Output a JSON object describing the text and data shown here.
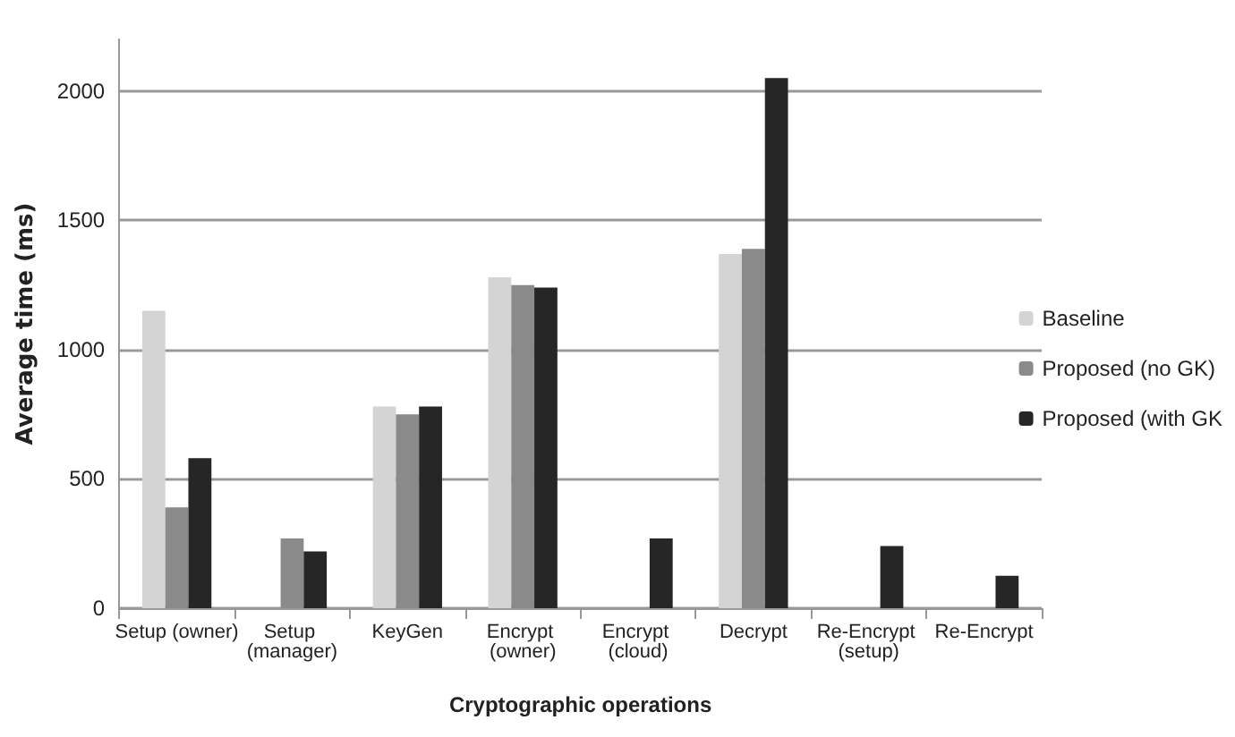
{
  "chart_data": {
    "type": "bar",
    "xlabel": "Cryptographic operations",
    "ylabel": "Average time (ms)",
    "categories": [
      "Setup (owner)",
      "Setup (manager)",
      "KeyGen",
      "Encrypt (owner)",
      "Encrypt (cloud)",
      "Decrypt",
      "Re-Encrypt (setup)",
      "Re-Encrypt"
    ],
    "series": [
      {
        "name": "Baseline",
        "color": "#d4d4d4",
        "values": [
          1150,
          null,
          780,
          1280,
          null,
          1370,
          null,
          null
        ]
      },
      {
        "name": "Proposed (no GK)",
        "color": "#8a8a8a",
        "values": [
          390,
          270,
          750,
          1250,
          null,
          1390,
          null,
          null
        ]
      },
      {
        "name": "Proposed (with GK",
        "color": "#262626",
        "values": [
          580,
          220,
          780,
          1240,
          270,
          2050,
          240,
          125
        ]
      }
    ],
    "ylim": [
      0,
      2200
    ],
    "yticks": [
      0,
      500,
      1000,
      1500,
      2000
    ],
    "grid": "y",
    "legend": "right"
  }
}
